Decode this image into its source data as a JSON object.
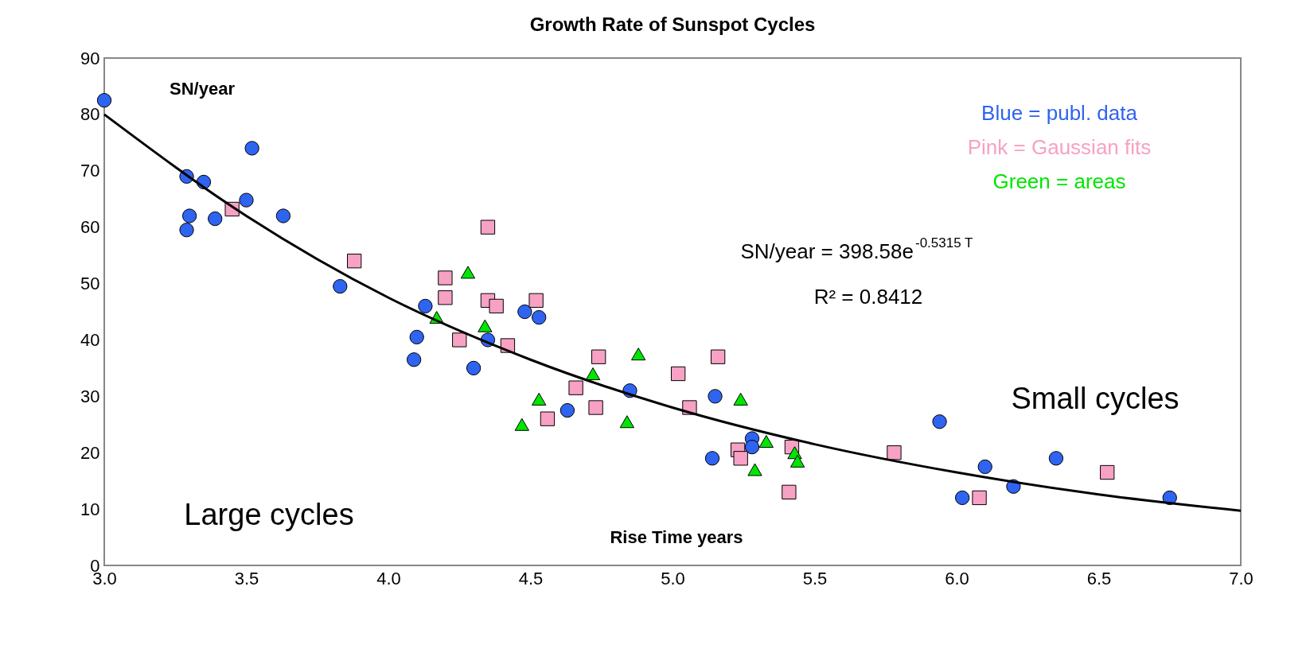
{
  "chart_data": {
    "type": "scatter",
    "title": "Growth Rate of Sunspot Cycles",
    "xlabel": "Rise Time years",
    "ylabel": "SN/year",
    "xlim": [
      3.0,
      7.0
    ],
    "ylim": [
      0,
      90
    ],
    "xticks": [
      {
        "value": 3,
        "label": "3.0"
      },
      3.5,
      {
        "value": 4,
        "label": "4.0"
      },
      4.5,
      {
        "value": 5,
        "label": "5.0"
      },
      5.5,
      {
        "value": 6,
        "label": "6.0"
      },
      6.5,
      {
        "value": 7,
        "label": "7.0"
      }
    ],
    "yticks": [
      0,
      10,
      20,
      30,
      40,
      50,
      60,
      70,
      80,
      90
    ],
    "grid": false,
    "legend": "top right",
    "series": [
      {
        "name": "Blue = publ. data",
        "color": "#2f64f0",
        "marker": "circle",
        "x": [
          3.0,
          3.29,
          3.29,
          3.3,
          3.35,
          3.39,
          3.5,
          3.52,
          3.63,
          3.83,
          4.13,
          4.1,
          4.09,
          4.3,
          4.35,
          4.48,
          4.53,
          4.63,
          4.85,
          5.15,
          5.14,
          5.28,
          5.28,
          5.94,
          6.02,
          6.1,
          6.2,
          6.35,
          6.75
        ],
        "values": [
          82.5,
          69,
          59.5,
          62,
          68,
          61.5,
          64.8,
          74,
          62,
          49.5,
          46,
          40.5,
          36.5,
          35,
          40,
          45,
          44,
          27.5,
          31,
          30,
          19,
          22.5,
          21,
          25.5,
          12,
          17.5,
          14,
          19,
          12
        ]
      },
      {
        "name": "Pink = Gaussian fits",
        "color": "#f7a1c4",
        "marker": "square",
        "x": [
          3.45,
          3.88,
          4.35,
          4.2,
          4.2,
          4.25,
          4.35,
          4.38,
          4.42,
          4.52,
          4.56,
          4.66,
          4.73,
          4.74,
          5.02,
          5.06,
          5.16,
          5.23,
          5.24,
          5.41,
          5.42,
          5.78,
          6.08,
          6.53
        ],
        "values": [
          63.2,
          54,
          60,
          51,
          47.5,
          40,
          47,
          46,
          39,
          47,
          26,
          31.5,
          28,
          37,
          34,
          28,
          37,
          20.5,
          19,
          13,
          21,
          20,
          12,
          16.5
        ]
      },
      {
        "name": "Green = areas",
        "color": "#00e600",
        "marker": "triangle",
        "x": [
          4.28,
          4.17,
          4.34,
          4.47,
          4.53,
          4.72,
          4.88,
          4.84,
          5.24,
          5.33,
          5.29,
          5.43,
          5.44
        ],
        "values": [
          52,
          44,
          42.5,
          25,
          29.5,
          34,
          37.5,
          25.5,
          29.5,
          22,
          17,
          20,
          18.5
        ]
      },
      {
        "type": "line",
        "color": "#000000",
        "x": [
          3.0,
          3.5,
          4.0,
          4.5,
          5.0,
          5.5,
          6.0,
          6.5,
          7.0
        ],
        "values": [
          80,
          62,
          47.5,
          36.5,
          28,
          21.5,
          16.5,
          12.6,
          9.7
        ]
      }
    ],
    "annotations": [
      "SN/year = 398.58e$^{-0.5315 T}$",
      "R² = 0.8412",
      "Large cycles",
      "Small cycles"
    ]
  }
}
